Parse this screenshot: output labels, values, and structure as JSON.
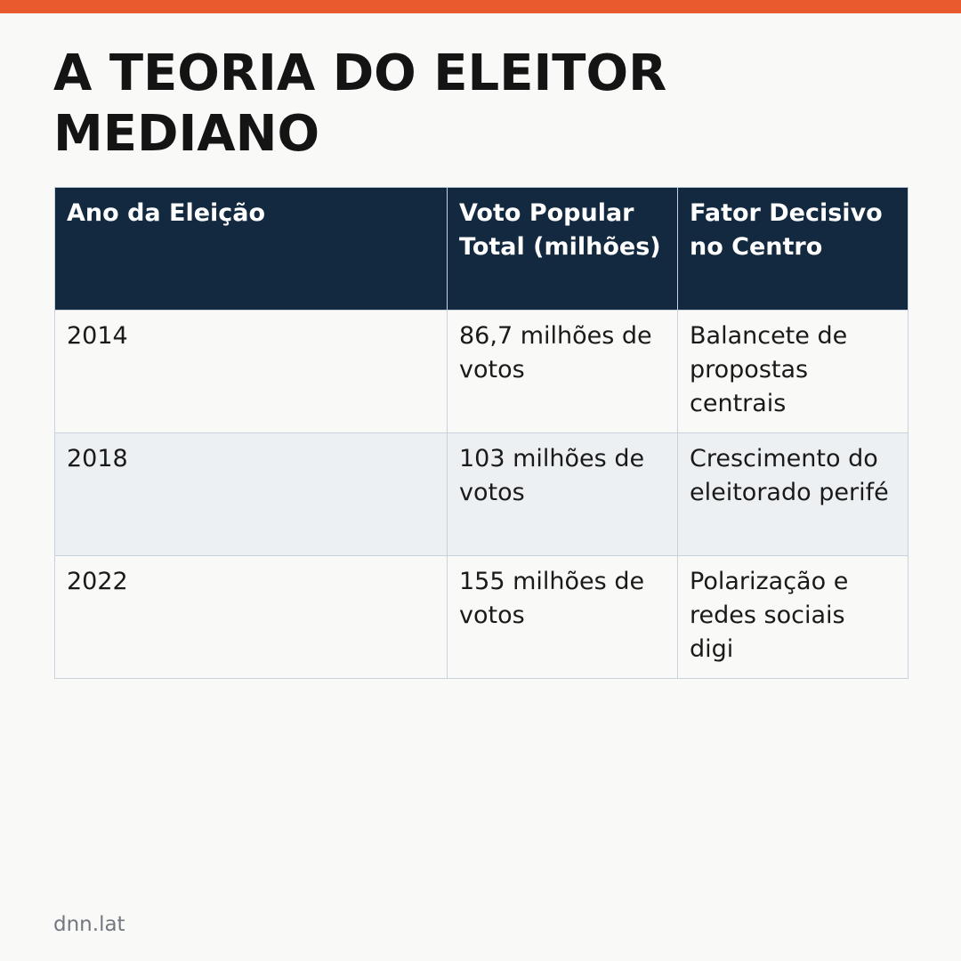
{
  "colors": {
    "accent_bar": "#e95b2e",
    "table_header_bg": "#12293f",
    "table_row_alt_bg": "#edf0f2",
    "page_bg": "#f9f9f7"
  },
  "title": "A TEORIA DO ELEITOR MEDIANO",
  "table": {
    "headers": [
      "Ano da Eleição",
      "Voto Popular Total (milhões)",
      "Fator Decisivo no Centro"
    ],
    "rows": [
      [
        "2014",
        "86,7 milhões de votos",
        "Balancete de propostas centrais"
      ],
      [
        "2018",
        "103 milhões de votos",
        "Crescimento do eleitorado perifé"
      ],
      [
        "2022",
        "155 milhões de votos",
        "Polarização e redes sociais digi"
      ]
    ]
  },
  "footer": {
    "source": "dnn.lat"
  }
}
